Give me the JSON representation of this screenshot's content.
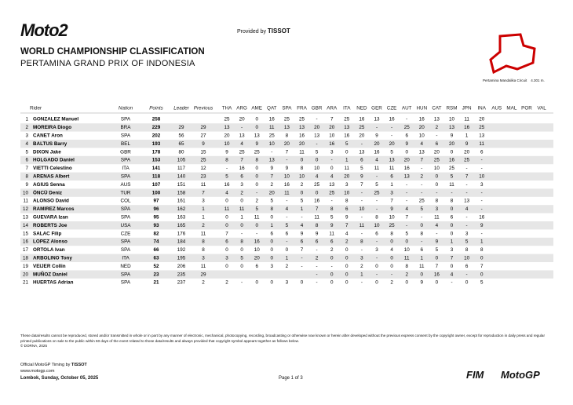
{
  "header": {
    "logo": "Moto2",
    "provided_by": "Provided by",
    "sponsor": "TISSOT",
    "title": "WORLD CHAMPIONSHIP CLASSIFICATION",
    "subtitle": "PERTAMINA GRAND PRIX OF INDONESIA",
    "circuit": "Pertamina Mandalika Circuit",
    "circuit_length": "4.301 m."
  },
  "table": {
    "columns": [
      "Rider",
      "Nation",
      "Points",
      "Leader",
      "Previous",
      "THA",
      "ARG",
      "AME",
      "QAT",
      "SPA",
      "FRA",
      "GBR",
      "ARA",
      "ITA",
      "NED",
      "GER",
      "CZE",
      "AUT",
      "HUN",
      "CAT",
      "RSM",
      "JPN",
      "INA",
      "AUS",
      "MAL",
      "POR",
      "VAL"
    ],
    "rows": [
      [
        "1",
        "GONZALEZ Manuel",
        "SPA",
        "258",
        null,
        null,
        "25",
        "20",
        "0",
        "16",
        "25",
        "25",
        "-",
        "7",
        "25",
        "16",
        "13",
        "16",
        "-",
        "16",
        "13",
        "10",
        "11",
        "20"
      ],
      [
        "2",
        "MOREIRA Diogo",
        "BRA",
        "229",
        "29",
        "29",
        "13",
        "-",
        "0",
        "11",
        "13",
        "13",
        "20",
        "20",
        "13",
        "25",
        "-",
        "-",
        "25",
        "20",
        "2",
        "13",
        "16",
        "25"
      ],
      [
        "3",
        "CANET Aron",
        "SPA",
        "202",
        "56",
        "27",
        "20",
        "13",
        "13",
        "25",
        "8",
        "16",
        "13",
        "10",
        "16",
        "20",
        "9",
        "-",
        "6",
        "10",
        "-",
        "9",
        "1",
        "13"
      ],
      [
        "4",
        "BALTUS Barry",
        "BEL",
        "193",
        "65",
        "9",
        "10",
        "4",
        "9",
        "10",
        "20",
        "20",
        "-",
        "16",
        "5",
        "-",
        "20",
        "20",
        "9",
        "4",
        "6",
        "20",
        "9",
        "11"
      ],
      [
        "5",
        "DIXON Jake",
        "GBR",
        "178",
        "80",
        "15",
        "9",
        "25",
        "25",
        "-",
        "7",
        "11",
        "5",
        "3",
        "0",
        "13",
        "16",
        "5",
        "0",
        "13",
        "20",
        "0",
        "20",
        "6"
      ],
      [
        "6",
        "HOLGADO Daniel",
        "SPA",
        "153",
        "105",
        "25",
        "8",
        "7",
        "8",
        "13",
        "-",
        "0",
        "0",
        "-",
        "1",
        "6",
        "4",
        "13",
        "20",
        "7",
        "25",
        "16",
        "25",
        "-"
      ],
      [
        "7",
        "VIETTI Celestino",
        "ITA",
        "141",
        "117",
        "12",
        "-",
        "16",
        "0",
        "9",
        "9",
        "8",
        "10",
        "0",
        "11",
        "5",
        "11",
        "11",
        "16",
        "-",
        "10",
        "25",
        "-",
        "-"
      ],
      [
        "8",
        "ARENAS Albert",
        "SPA",
        "118",
        "140",
        "23",
        "5",
        "6",
        "0",
        "7",
        "10",
        "10",
        "4",
        "4",
        "20",
        "9",
        "-",
        "6",
        "13",
        "2",
        "0",
        "5",
        "7",
        "10"
      ],
      [
        "9",
        "AGIUS Senna",
        "AUS",
        "107",
        "151",
        "11",
        "16",
        "3",
        "0",
        "2",
        "16",
        "2",
        "25",
        "13",
        "3",
        "7",
        "5",
        "1",
        "-",
        "-",
        "0",
        "11",
        "-",
        "3"
      ],
      [
        "10",
        "ÖNCÜ Deniz",
        "TUR",
        "100",
        "158",
        "7",
        "4",
        "2",
        "-",
        "20",
        "11",
        "0",
        "0",
        "25",
        "10",
        "-",
        "25",
        "3",
        "-",
        "-",
        "-",
        "-",
        "-",
        "-"
      ],
      [
        "11",
        "ALONSO David",
        "COL",
        "97",
        "161",
        "3",
        "0",
        "0",
        "2",
        "5",
        "-",
        "5",
        "16",
        "-",
        "8",
        "-",
        "-",
        "7",
        "-",
        "25",
        "8",
        "8",
        "13",
        "-"
      ],
      [
        "12",
        "RAMIREZ Marcos",
        "SPA",
        "96",
        "162",
        "1",
        "11",
        "11",
        "5",
        "8",
        "4",
        "1",
        "7",
        "8",
        "6",
        "10",
        "-",
        "9",
        "4",
        "5",
        "3",
        "0",
        "4",
        "-"
      ],
      [
        "13",
        "GUEVARA Izan",
        "SPA",
        "95",
        "163",
        "1",
        "0",
        "1",
        "11",
        "0",
        "-",
        "-",
        "11",
        "5",
        "9",
        "-",
        "8",
        "10",
        "7",
        "-",
        "11",
        "6",
        "-",
        "16"
      ],
      [
        "14",
        "ROBERTS Joe",
        "USA",
        "93",
        "165",
        "2",
        "0",
        "0",
        "0",
        "1",
        "5",
        "4",
        "8",
        "9",
        "7",
        "11",
        "10",
        "25",
        "-",
        "0",
        "4",
        "0",
        "-",
        "9"
      ],
      [
        "15",
        "SALAC Filip",
        "CZE",
        "82",
        "176",
        "11",
        "7",
        "-",
        "-",
        "6",
        "6",
        "9",
        "9",
        "11",
        "4",
        "-",
        "6",
        "8",
        "5",
        "8",
        "-",
        "0",
        "3",
        "-"
      ],
      [
        "16",
        "LOPEZ Alonso",
        "SPA",
        "74",
        "184",
        "8",
        "6",
        "8",
        "16",
        "0",
        "-",
        "6",
        "6",
        "6",
        "2",
        "8",
        "-",
        "0",
        "0",
        "-",
        "9",
        "1",
        "5",
        "1"
      ],
      [
        "17",
        "ORTOLA Ivan",
        "SPA",
        "66",
        "192",
        "8",
        "0",
        "0",
        "10",
        "0",
        "0",
        "7",
        "-",
        "2",
        "0",
        "-",
        "3",
        "4",
        "10",
        "6",
        "5",
        "3",
        "8",
        "8"
      ],
      [
        "18",
        "ARBOLINO Tony",
        "ITA",
        "63",
        "195",
        "3",
        "3",
        "5",
        "20",
        "0",
        "1",
        "-",
        "2",
        "0",
        "0",
        "3",
        "-",
        "0",
        "11",
        "1",
        "0",
        "7",
        "10",
        "0"
      ],
      [
        "19",
        "VEIJER Collin",
        "NED",
        "52",
        "206",
        "11",
        "0",
        "0",
        "6",
        "3",
        "2",
        "-",
        "-",
        "-",
        "0",
        "2",
        "0",
        "0",
        "8",
        "11",
        "7",
        "0",
        "6",
        "7"
      ],
      [
        "20",
        "MUÑOZ Daniel",
        "SPA",
        "23",
        "235",
        "29",
        null,
        null,
        null,
        null,
        null,
        null,
        "-",
        "0",
        "0",
        "1",
        "-",
        "-",
        "2",
        "0",
        "16",
        "4",
        "-",
        "0"
      ],
      [
        "21",
        "HUERTAS Adrian",
        "SPA",
        "21",
        "237",
        "2",
        "2",
        "-",
        "0",
        "0",
        "3",
        "0",
        "-",
        "0",
        "0",
        "-",
        "0",
        "2",
        "0",
        "9",
        "0",
        "-",
        "0",
        "5"
      ]
    ]
  },
  "footer": {
    "disclaimer": "These data/results cannot be reproduced, stored and/or transmitted in whole or in part by any manner of electronic, mechanical, photocopying, recording, broadcasting or otherwise now known or herein after developed without the previous express consent by the copyright owner, except for reproduction in daily press and regular printed publications on sale to the public within 60 days of the event related to those data/results and always provided that copyright symbol appears together as follows below.",
    "copyright": "© DORNA, 2025",
    "timing": "Official MotoGP Timing by",
    "timing_sponsor": "TISSOT",
    "website": "www.motogp.com",
    "place_date": "Lombok, Sunday, October 05, 2025",
    "page": "Page 1 of 3",
    "logo_fim": "FIM",
    "logo_motogp": "MotoGP"
  }
}
